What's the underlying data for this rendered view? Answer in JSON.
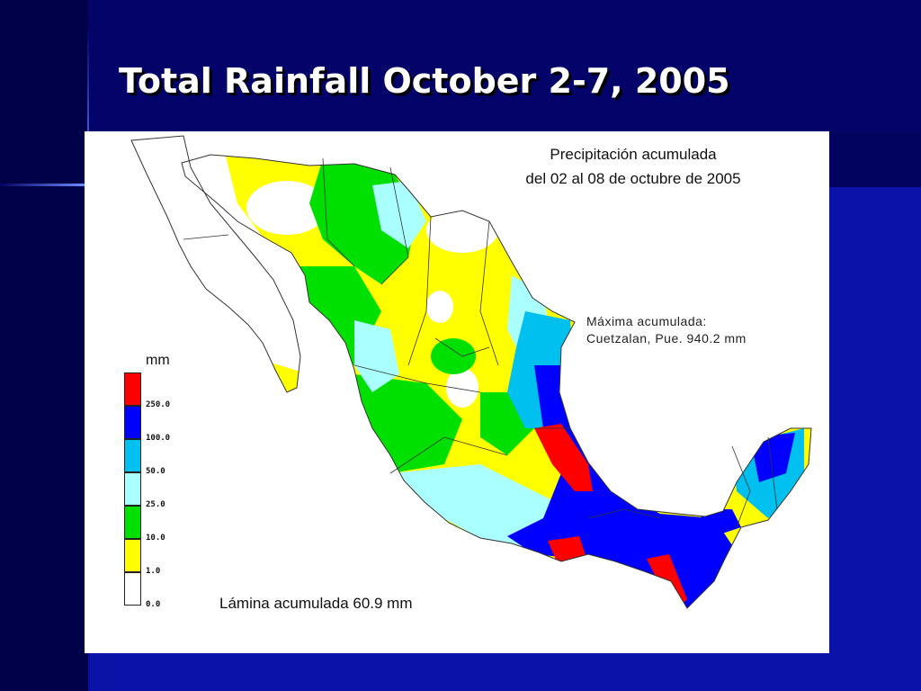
{
  "slide": {
    "title": "Total Rainfall October 2-7, 2005"
  },
  "map": {
    "title_line1": "Precipitación acumulada",
    "title_line2": "del 02 al 08 de octubre de 2005",
    "max_line1": "Máxima acumulada:",
    "max_line2": "Cuetzalan, Pue. 940.2 mm",
    "lamina": "Lámina acumulada 60.9 mm",
    "legend": {
      "unit": "mm",
      "classes": [
        {
          "color": "#ffffff",
          "tick": "0.0"
        },
        {
          "color": "#ffff00",
          "tick": "1.0"
        },
        {
          "color": "#00e000",
          "tick": "10.0"
        },
        {
          "color": "#aaffff",
          "tick": "25.0"
        },
        {
          "color": "#00c0f0",
          "tick": "50.0"
        },
        {
          "color": "#0000ff",
          "tick": "100.0"
        },
        {
          "color": "#ff0000",
          "tick": "250.0"
        }
      ]
    }
  }
}
